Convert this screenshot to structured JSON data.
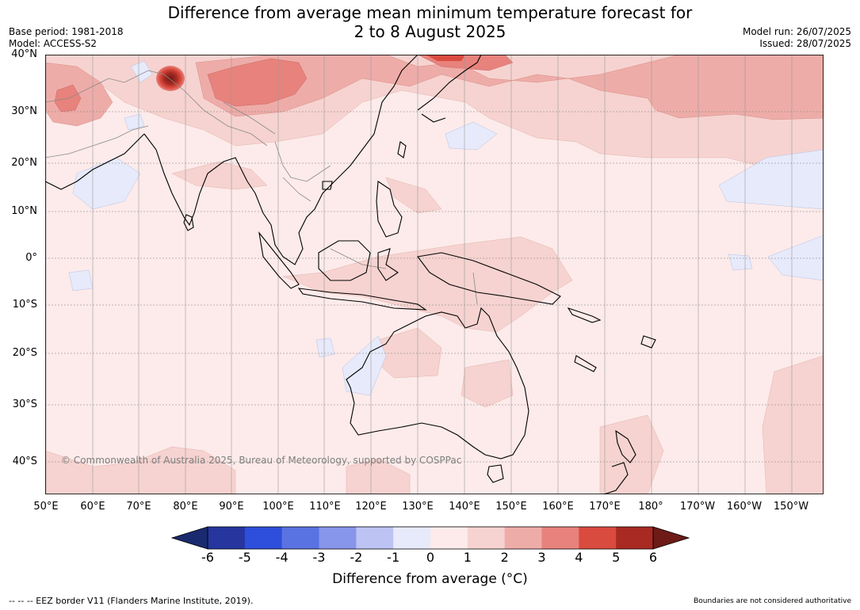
{
  "title_line1": "Difference from average mean minimum temperature forecast for",
  "title_line2": "2 to 8 August 2025",
  "base_period": "Base period: 1981-2018",
  "model": "Model: ACCESS-S2",
  "model_run": "Model run: 26/07/2025",
  "issued": "Issued: 28/07/2025",
  "copyright": "© Commonwealth of Australia 2025, Bureau of Meteorology, supported by COSPPac",
  "lat_labels": [
    "40°N",
    "30°N",
    "20°N",
    "10°N",
    "0°",
    "10°S",
    "20°S",
    "30°S",
    "40°S"
  ],
  "lon_labels": [
    "50°E",
    "60°E",
    "70°E",
    "80°E",
    "90°E",
    "100°E",
    "110°E",
    "120°E",
    "130°E",
    "140°E",
    "150°E",
    "160°E",
    "170°E",
    "180°",
    "170°W",
    "160°W",
    "150°W"
  ],
  "colorbar": {
    "ticks": [
      "-6",
      "-5",
      "-4",
      "-3",
      "-2",
      "-1",
      "0",
      "1",
      "2",
      "3",
      "4",
      "5",
      "6"
    ],
    "colors": [
      "#26369e",
      "#2e4fdb",
      "#5a73e3",
      "#8796ea",
      "#bdc3f3",
      "#e7eafa",
      "#fcebea",
      "#f6d3d0",
      "#eeaca8",
      "#e8827c",
      "#da4b3f",
      "#a82a22"
    ],
    "under_color": "#1a2a6e",
    "over_color": "#6e1a16",
    "label": "Difference from average (°C)"
  },
  "footer_left": "--  --  -- EEZ border V11 (Flanders Marine Institute, 2019).",
  "footer_right": "Boundaries are not considered authoritative"
}
